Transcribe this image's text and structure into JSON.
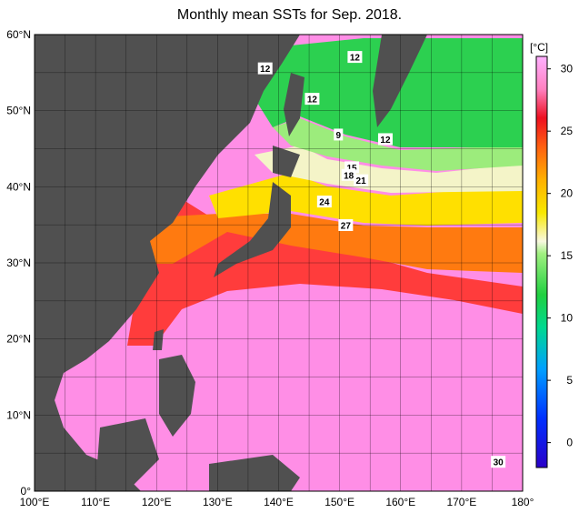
{
  "title": "Monthly mean SSTs for Sep. 2018.",
  "colorbar": {
    "unit": "[°C]",
    "ticks": [
      30,
      25,
      20,
      15,
      10,
      5,
      0
    ],
    "range": [
      -2,
      31
    ]
  },
  "axes": {
    "lon_ticks": [
      "100°E",
      "110°E",
      "120°E",
      "130°E",
      "140°E",
      "150°E",
      "160°E",
      "170°E",
      "180°"
    ],
    "lat_ticks": [
      "60°N",
      "50°N",
      "40°N",
      "30°N",
      "20°N",
      "10°N",
      "0°"
    ],
    "lon_range": [
      100,
      180
    ],
    "lat_range": [
      0,
      60
    ]
  },
  "contour_labels": [
    {
      "text": "12",
      "lon": 137.8,
      "lat": 55.5
    },
    {
      "text": "12",
      "lon": 152.5,
      "lat": 57.0
    },
    {
      "text": "12",
      "lon": 145.5,
      "lat": 51.5
    },
    {
      "text": "9",
      "lon": 149.8,
      "lat": 46.8
    },
    {
      "text": "12",
      "lon": 157.5,
      "lat": 46.2
    },
    {
      "text": "15",
      "lon": 152.0,
      "lat": 42.5
    },
    {
      "text": "18",
      "lon": 151.5,
      "lat": 41.5
    },
    {
      "text": "21",
      "lon": 153.5,
      "lat": 40.8
    },
    {
      "text": "24",
      "lon": 147.5,
      "lat": 38.0
    },
    {
      "text": "27",
      "lon": 151.0,
      "lat": 34.9
    },
    {
      "text": "30",
      "lon": 176.0,
      "lat": 3.8
    }
  ],
  "colors": {
    "land": "#505050",
    "frame": "#000000"
  }
}
